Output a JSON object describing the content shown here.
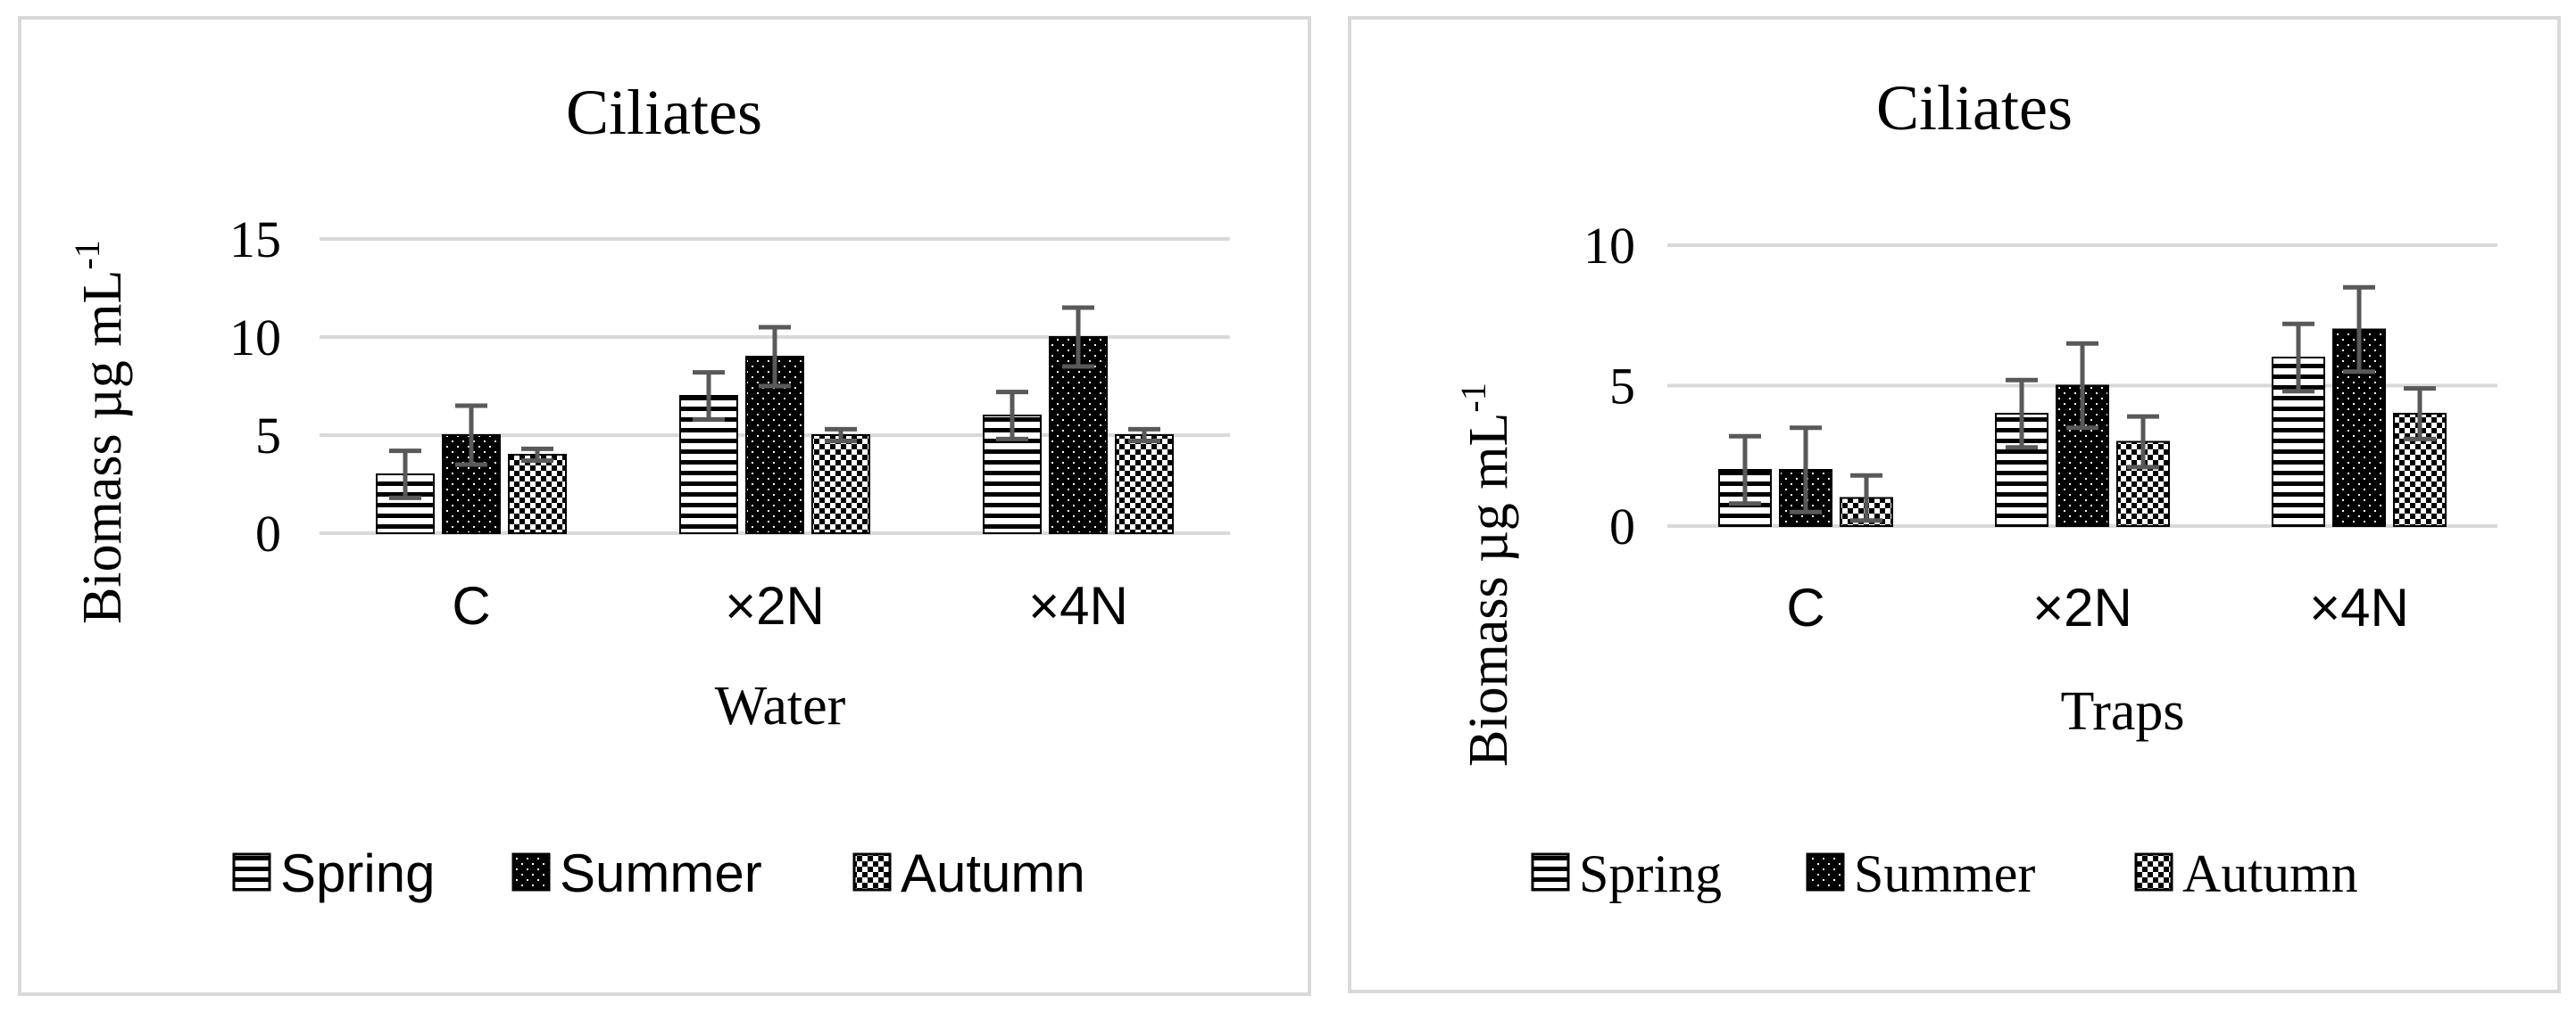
{
  "chart_data": [
    {
      "type": "bar",
      "title": "Ciliates",
      "xlabel": "Water",
      "ylabel": "Biomass µg mL",
      "ylabel_superscript": "-1",
      "ylim": [
        0,
        15
      ],
      "yticks": [
        0,
        5,
        10,
        15
      ],
      "grid": true,
      "legend_position": "bottom",
      "categories": [
        "C",
        "×2N",
        "×4N"
      ],
      "series": [
        {
          "name": "Spring",
          "pattern": "horizontal-stripes",
          "values": [
            3,
            7,
            6
          ],
          "errors": [
            1.2,
            1.2,
            1.2
          ]
        },
        {
          "name": "Summer",
          "pattern": "black-dots",
          "values": [
            5,
            9,
            10
          ],
          "errors": [
            1.5,
            1.5,
            1.5
          ]
        },
        {
          "name": "Autumn",
          "pattern": "checker",
          "values": [
            4,
            5,
            5
          ],
          "errors": [
            0.3,
            0.3,
            0.3
          ]
        }
      ]
    },
    {
      "type": "bar",
      "title": "Ciliates",
      "xlabel": "Traps",
      "ylabel": "Biomass µg mL",
      "ylabel_superscript": "-1",
      "ylim": [
        0,
        10
      ],
      "yticks": [
        0,
        5,
        10
      ],
      "grid": true,
      "legend_position": "bottom",
      "categories": [
        "C",
        "×2N",
        "×4N"
      ],
      "series": [
        {
          "name": "Spring",
          "pattern": "horizontal-stripes",
          "values": [
            2,
            4,
            6
          ],
          "errors": [
            1.2,
            1.2,
            1.2
          ]
        },
        {
          "name": "Summer",
          "pattern": "black-dots",
          "values": [
            2,
            5,
            7
          ],
          "errors": [
            1.5,
            1.5,
            1.5
          ]
        },
        {
          "name": "Autumn",
          "pattern": "checker",
          "values": [
            1,
            3,
            4
          ],
          "errors": [
            0.8,
            0.9,
            0.9
          ]
        }
      ]
    }
  ],
  "colors": {
    "frame": "#d9d9d9",
    "grid": "#d9d9d9",
    "bar_stroke": "#000000",
    "error_bar": "#595959"
  }
}
